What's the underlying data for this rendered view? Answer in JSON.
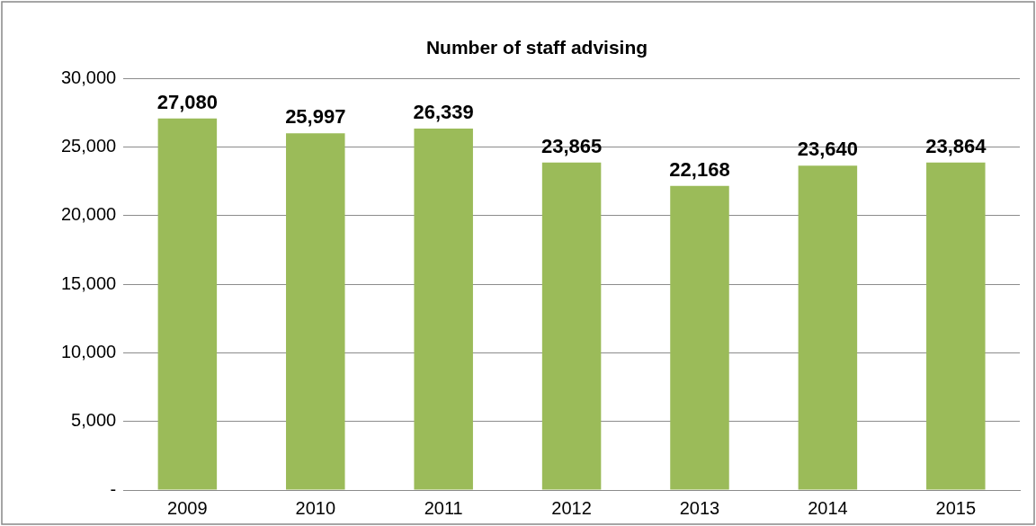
{
  "chart_data": {
    "type": "bar",
    "title": "Number of staff advising",
    "categories": [
      "2009",
      "2010",
      "2011",
      "2012",
      "2013",
      "2014",
      "2015"
    ],
    "values": [
      27080,
      25997,
      26339,
      23865,
      22168,
      23640,
      23864
    ],
    "color": "#9bbb59",
    "ylim": [
      0,
      30000
    ],
    "yticks": [
      {
        "value": 0,
        "label": "-"
      },
      {
        "value": 5000,
        "label": "5,000"
      },
      {
        "value": 10000,
        "label": "10,000"
      },
      {
        "value": 15000,
        "label": "15,000"
      },
      {
        "value": 20000,
        "label": "20,000"
      },
      {
        "value": 25000,
        "label": "25,000"
      },
      {
        "value": 30000,
        "label": "30,000"
      }
    ],
    "value_labels": [
      "27,080",
      "25,997",
      "26,339",
      "23,865",
      "22,168",
      "23,640",
      "23,864"
    ],
    "grid": "y",
    "legend": false
  }
}
